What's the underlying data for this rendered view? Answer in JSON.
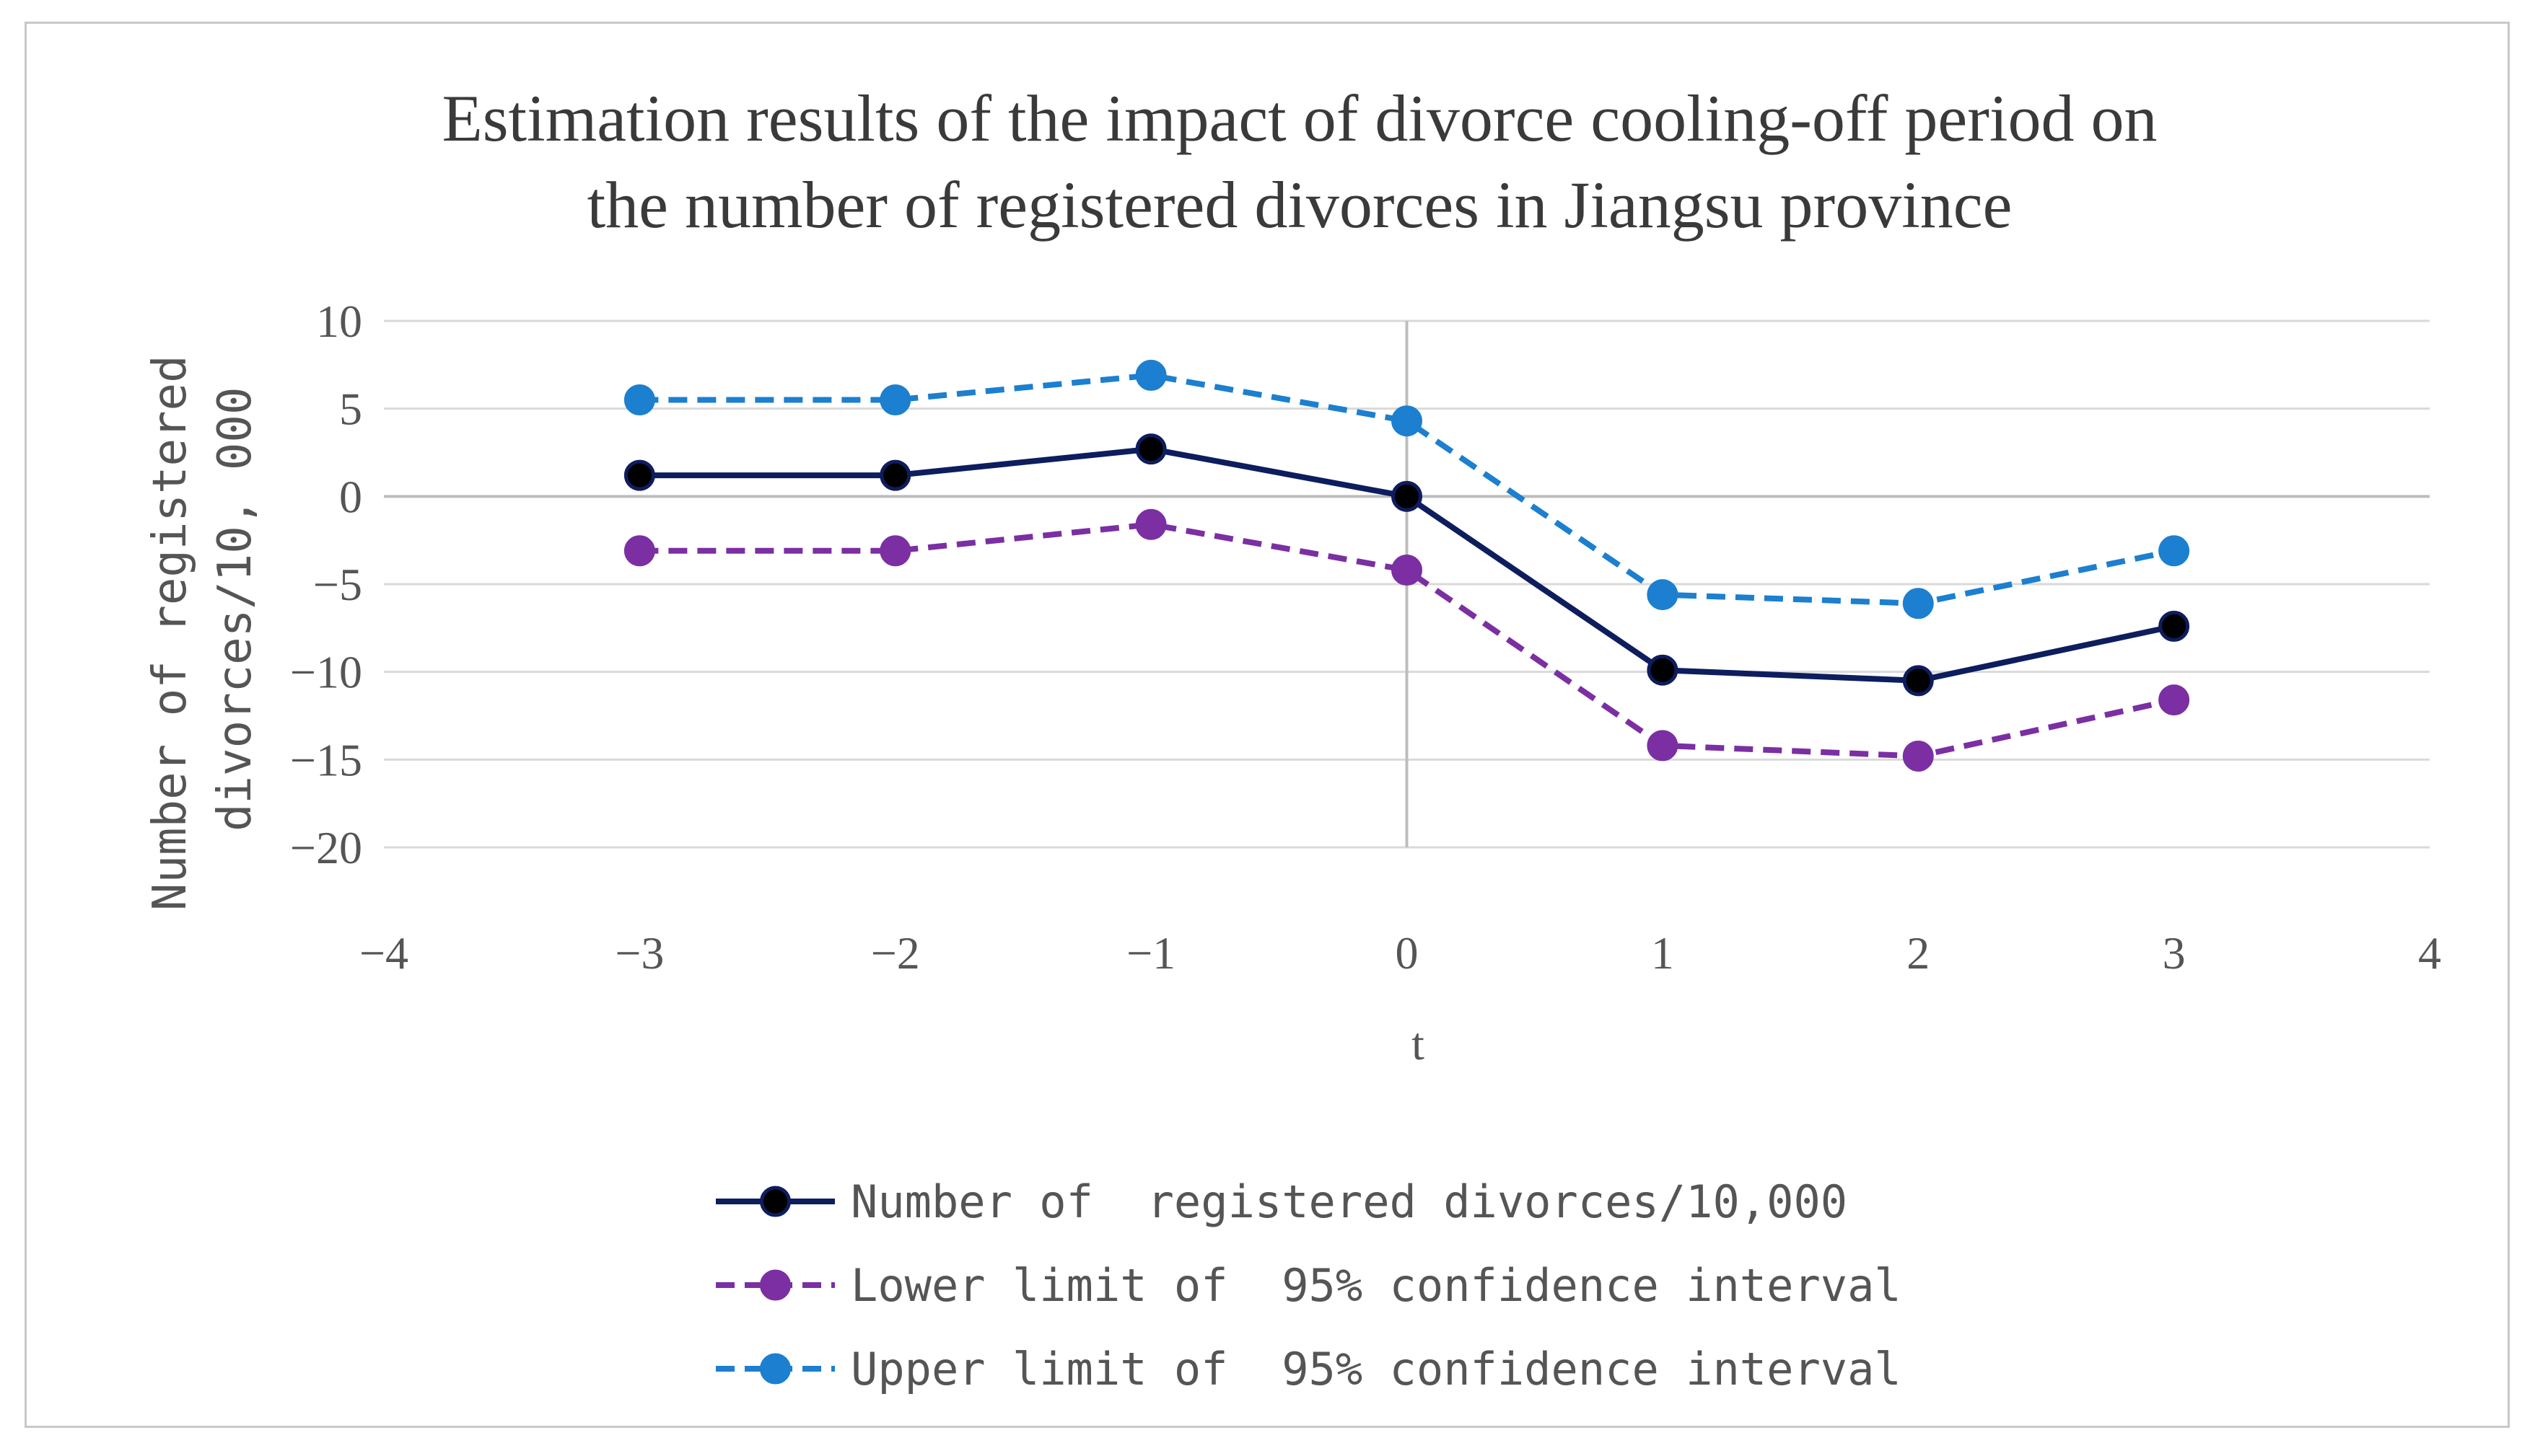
{
  "chart_data": {
    "type": "line",
    "title_lines": [
      "Estimation results of the impact of divorce cooling-off period on",
      "the number of registered divorces in Jiangsu province"
    ],
    "xlabel": "t",
    "ylabel_lines": [
      "Number of registered",
      "divorces/10, 000"
    ],
    "xlim": [
      -4,
      4
    ],
    "ylim": [
      -20,
      10
    ],
    "x_ticks": [
      -4,
      -3,
      -2,
      -1,
      0,
      1,
      2,
      3,
      4
    ],
    "x_tick_labels": [
      "−4",
      "−3",
      "−2",
      "−1",
      "0",
      "1",
      "2",
      "3",
      "4"
    ],
    "y_ticks": [
      10,
      5,
      0,
      -5,
      -10,
      -15,
      -20
    ],
    "y_tick_labels": [
      "10",
      "5",
      "0",
      "−5",
      "−10",
      "−15",
      "−20"
    ],
    "grid": "horizontal",
    "legend_position": "bottom",
    "x": [
      -3,
      -2,
      -1,
      0,
      1,
      2,
      3
    ],
    "series": [
      {
        "name": "Number of  registered divorces/10,000",
        "values": [
          1.2,
          1.2,
          2.7,
          0,
          -9.9,
          -10.5,
          -7.4
        ],
        "color": "#0d1d5e",
        "marker_color": "#000000",
        "dash": "solid"
      },
      {
        "name": "Lower limit of  95% confidence interval",
        "values": [
          -3.1,
          -3.1,
          -1.6,
          -4.2,
          -14.2,
          -14.8,
          -11.6
        ],
        "color": "#7b2fa3",
        "marker_color": "#7b2fa3",
        "dash": "dashed"
      },
      {
        "name": "Upper limit of  95% confidence interval",
        "values": [
          5.5,
          5.5,
          6.9,
          4.3,
          -5.6,
          -6.1,
          -3.1
        ],
        "color": "#1c7fcf",
        "marker_color": "#1c7fcf",
        "dash": "dashed"
      }
    ]
  }
}
